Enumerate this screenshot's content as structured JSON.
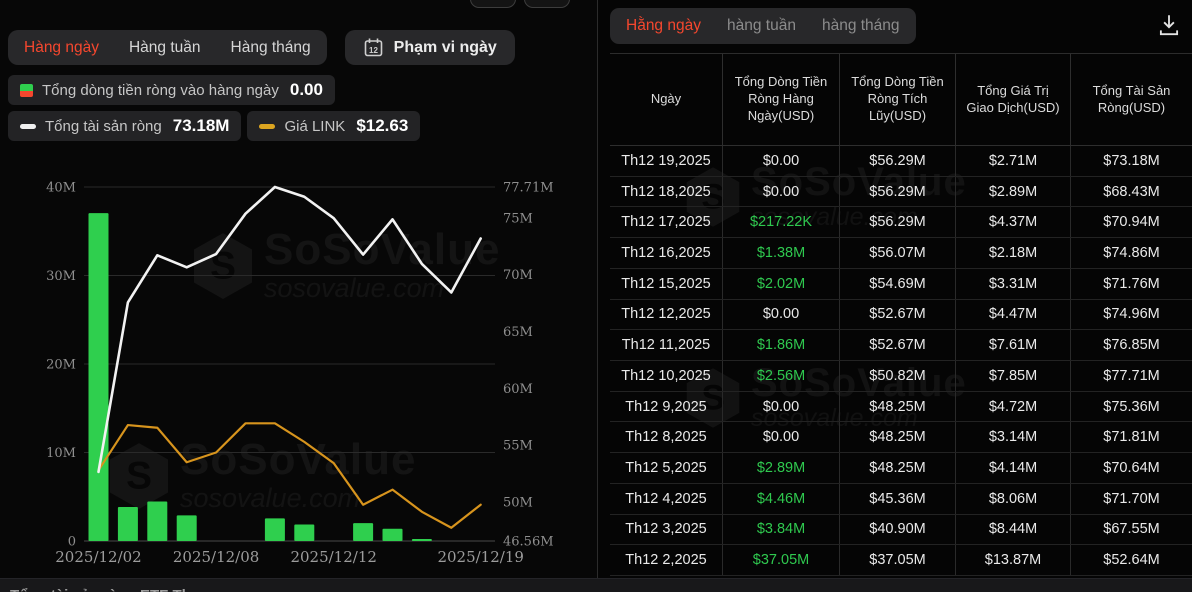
{
  "watermark": {
    "title": "SoSoValue",
    "domain": "sosovalue.com"
  },
  "left_panel": {
    "tabs": [
      {
        "label": "Hàng ngày",
        "active": true
      },
      {
        "label": "Hàng tuần",
        "active": false
      },
      {
        "label": "Hàng tháng",
        "active": false
      }
    ],
    "date_range_button": {
      "label": "Phạm vi ngày",
      "icon": "calendar-icon",
      "icon_day": "12"
    },
    "legend": [
      {
        "icon": "bar-updown-icon",
        "label": "Tổng dòng tiền ròng vào hàng ngày",
        "value": "0.00"
      },
      {
        "icon": "white-dash-icon",
        "label": "Tổng tài sản ròng",
        "value": "73.18M"
      },
      {
        "icon": "orange-dash-icon",
        "label": "Giá LINK",
        "value": "$12.63"
      }
    ]
  },
  "chart_data": {
    "type": "bar+line",
    "dates": [
      "2025/12/02",
      "2025/12/03",
      "2025/12/04",
      "2025/12/05",
      "2025/12/08",
      "2025/12/09",
      "2025/12/10",
      "2025/12/11",
      "2025/12/12",
      "2025/12/15",
      "2025/12/16",
      "2025/12/17",
      "2025/12/18",
      "2025/12/19"
    ],
    "x_labels": [
      "2025/12/02",
      "2025/12/08",
      "2025/12/12",
      "2025/12/19"
    ],
    "x_label_indices": [
      0,
      4,
      8,
      13
    ],
    "left_axis": {
      "ticks": [
        "40M",
        "30M",
        "20M",
        "10M",
        "0"
      ],
      "tick_values": [
        40,
        30,
        20,
        10,
        0
      ],
      "min": 0,
      "max": 40,
      "unit": "M USD"
    },
    "right_axis": {
      "ticks": [
        "77.71M",
        "75M",
        "70M",
        "65M",
        "60M",
        "55M",
        "50M",
        "46.56M"
      ],
      "tick_values": [
        77.71,
        75,
        70,
        65,
        60,
        55,
        50,
        46.56
      ],
      "min": 46.56,
      "max": 77.71,
      "unit": "M USD"
    },
    "grid": true,
    "series": [
      {
        "name": "Tổng dòng tiền ròng vào hàng ngày",
        "type": "bar",
        "axis": "left",
        "color": "#2fcf4e",
        "values": [
          37.05,
          3.84,
          4.46,
          2.89,
          0,
          0,
          2.56,
          1.86,
          0,
          2.02,
          1.38,
          0.22,
          0,
          0
        ]
      },
      {
        "name": "Tổng tài sản ròng",
        "type": "line",
        "axis": "right",
        "color": "#f2f2f2",
        "values": [
          52.64,
          67.55,
          71.7,
          70.64,
          71.81,
          75.36,
          77.71,
          76.85,
          74.96,
          71.76,
          74.86,
          70.94,
          68.43,
          73.18
        ]
      },
      {
        "name": "Giá LINK",
        "type": "line",
        "axis": "hidden",
        "color": "#d7941d",
        "latest_price": "$12.63",
        "values_left_scale_est": [
          8.0,
          13.1,
          12.8,
          8.9,
          10.0,
          13.3,
          13.3,
          11.2,
          8.8,
          4.1,
          5.8,
          3.3,
          1.5,
          4.1
        ]
      }
    ]
  },
  "right_panel": {
    "tabs": [
      {
        "label": "Hằng ngày",
        "active": true
      },
      {
        "label": "hàng tuần",
        "active": false
      },
      {
        "label": "hàng tháng",
        "active": false
      }
    ],
    "download_icon": "download-icon",
    "table": {
      "columns": [
        "Ngày",
        "Tổng Dòng Tiền Ròng Hàng Ngày(USD)",
        "Tổng Dòng Tiền Ròng Tích Lũy(USD)",
        "Tổng Giá Trị Giao Dịch(USD)",
        "Tổng Tài Sản Ròng(USD)"
      ],
      "rows": [
        {
          "date": "Th12 19,2025",
          "daily": "$0.00",
          "cumulative": "$56.29M",
          "volume": "$2.71M",
          "net_assets": "$73.18M",
          "daily_positive": false
        },
        {
          "date": "Th12 18,2025",
          "daily": "$0.00",
          "cumulative": "$56.29M",
          "volume": "$2.89M",
          "net_assets": "$68.43M",
          "daily_positive": false
        },
        {
          "date": "Th12 17,2025",
          "daily": "$217.22K",
          "cumulative": "$56.29M",
          "volume": "$4.37M",
          "net_assets": "$70.94M",
          "daily_positive": true
        },
        {
          "date": "Th12 16,2025",
          "daily": "$1.38M",
          "cumulative": "$56.07M",
          "volume": "$2.18M",
          "net_assets": "$74.86M",
          "daily_positive": true
        },
        {
          "date": "Th12 15,2025",
          "daily": "$2.02M",
          "cumulative": "$54.69M",
          "volume": "$3.31M",
          "net_assets": "$71.76M",
          "daily_positive": true
        },
        {
          "date": "Th12 12,2025",
          "daily": "$0.00",
          "cumulative": "$52.67M",
          "volume": "$4.47M",
          "net_assets": "$74.96M",
          "daily_positive": false
        },
        {
          "date": "Th12 11,2025",
          "daily": "$1.86M",
          "cumulative": "$52.67M",
          "volume": "$7.61M",
          "net_assets": "$76.85M",
          "daily_positive": true
        },
        {
          "date": "Th12 10,2025",
          "daily": "$2.56M",
          "cumulative": "$50.82M",
          "volume": "$7.85M",
          "net_assets": "$77.71M",
          "daily_positive": true
        },
        {
          "date": "Th12 9,2025",
          "daily": "$0.00",
          "cumulative": "$48.25M",
          "volume": "$4.72M",
          "net_assets": "$75.36M",
          "daily_positive": false
        },
        {
          "date": "Th12 8,2025",
          "daily": "$0.00",
          "cumulative": "$48.25M",
          "volume": "$3.14M",
          "net_assets": "$71.81M",
          "daily_positive": false
        },
        {
          "date": "Th12 5,2025",
          "daily": "$2.89M",
          "cumulative": "$48.25M",
          "volume": "$4.14M",
          "net_assets": "$70.64M",
          "daily_positive": true
        },
        {
          "date": "Th12 4,2025",
          "daily": "$4.46M",
          "cumulative": "$45.36M",
          "volume": "$8.06M",
          "net_assets": "$71.70M",
          "daily_positive": true
        },
        {
          "date": "Th12 3,2025",
          "daily": "$3.84M",
          "cumulative": "$40.90M",
          "volume": "$8.44M",
          "net_assets": "$67.55M",
          "daily_positive": true
        },
        {
          "date": "Th12 2,2025",
          "daily": "$37.05M",
          "cumulative": "$37.05M",
          "volume": "$13.87M",
          "net_assets": "$52.64M",
          "daily_positive": true
        }
      ]
    }
  },
  "footer": {
    "partial_title": "Tổng tài sản ròng ETF Th"
  },
  "colors": {
    "accent_red": "#f5472e",
    "positive_green": "#2fc94f",
    "bar_green": "#2fcf4e",
    "link_orange": "#d7941d",
    "asset_line_white": "#f2f2f2"
  }
}
